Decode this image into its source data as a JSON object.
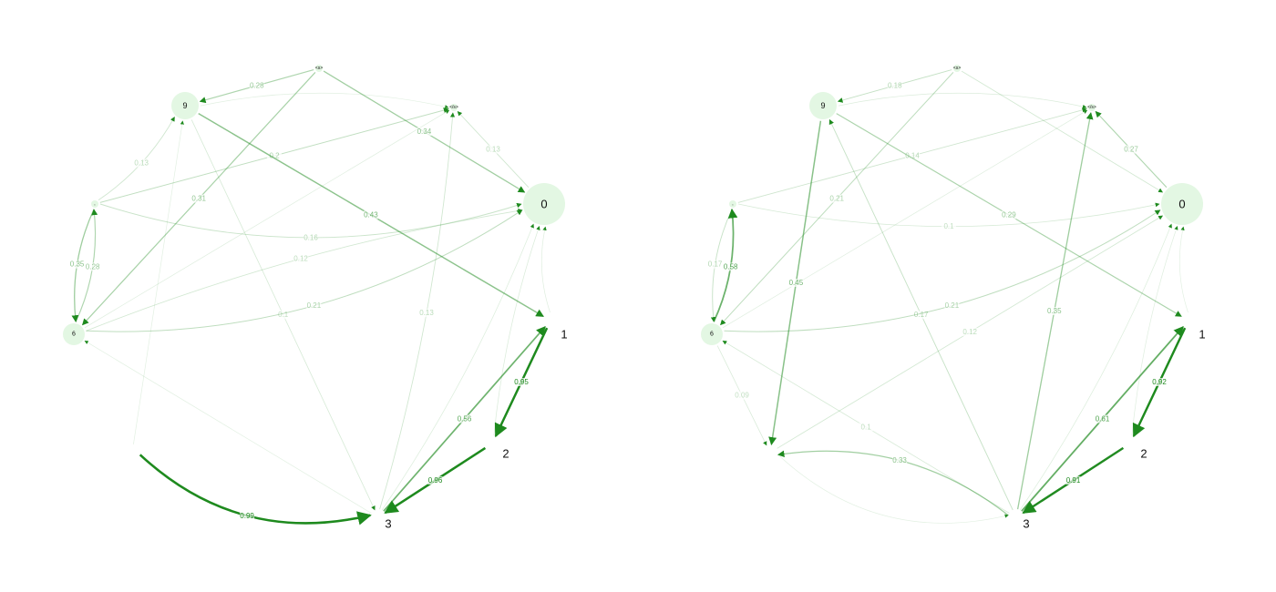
{
  "colors": {
    "edge": "#1e8a1e",
    "node_fill": "#e3f7e3",
    "label": "#111111"
  },
  "graphs": [
    {
      "id": "left",
      "nodes": [
        {
          "id": "s",
          "label": "<s>",
          "size": "tiny"
        },
        {
          "id": "9",
          "label": "9",
          "size": "medium"
        },
        {
          "id": "e",
          "label": "</s>",
          "size": "tiny"
        },
        {
          "id": "0",
          "label": "0",
          "size": "large"
        },
        {
          "id": "comma",
          "label": ",",
          "size": "tiny"
        },
        {
          "id": "6",
          "label": "6",
          "size": "small"
        },
        {
          "id": "1",
          "label": "1",
          "size": "none"
        },
        {
          "id": "2",
          "label": "2",
          "size": "none"
        },
        {
          "id": "3",
          "label": "3",
          "size": "none"
        },
        {
          "id": "x",
          "label": "",
          "size": "none"
        }
      ],
      "edges": [
        {
          "from": "x",
          "to": "3",
          "weight": 0.99,
          "label": "0.99",
          "curve": 0.25
        },
        {
          "from": "1",
          "to": "2",
          "weight": 0.95,
          "label": "0.95",
          "curve": 0
        },
        {
          "from": "2",
          "to": "3",
          "weight": 0.96,
          "label": "0.96",
          "curve": 0
        },
        {
          "from": "3",
          "to": "1",
          "weight": 0.56,
          "label": "0.56",
          "curve": 0
        },
        {
          "from": "9",
          "to": "1",
          "weight": 0.43,
          "label": "0.43",
          "curve": 0
        },
        {
          "from": "comma",
          "to": "6",
          "weight": 0.35,
          "label": "0.35",
          "curve": 0.12
        },
        {
          "from": "6",
          "to": "comma",
          "weight": 0.28,
          "label": "0.28",
          "curve": 0.12
        },
        {
          "from": "s",
          "to": "9",
          "weight": 0.28,
          "label": "0.28",
          "curve": 0
        },
        {
          "from": "s",
          "to": "0",
          "weight": 0.34,
          "label": "0.34",
          "curve": 0
        },
        {
          "from": "s",
          "to": "6",
          "weight": 0.31,
          "label": "0.31",
          "curve": 0
        },
        {
          "from": "6",
          "to": "0",
          "weight": 0.21,
          "label": "0.21",
          "curve": 0.15
        },
        {
          "from": "comma",
          "to": "9",
          "weight": 0.13,
          "label": "0.13",
          "curve": 0.1
        },
        {
          "from": "comma",
          "to": "e",
          "weight": 0.2,
          "label": "0.2",
          "curve": 0
        },
        {
          "from": "comma",
          "to": "0",
          "weight": 0.16,
          "label": "0.16",
          "curve": 0.15
        },
        {
          "from": "6",
          "to": "0",
          "weight": 0.12,
          "label": "0.12",
          "curve": -0.05
        },
        {
          "from": "0",
          "to": "e",
          "weight": 0.13,
          "label": "0.13",
          "curve": 0
        },
        {
          "from": "9",
          "to": "e",
          "weight": 0.05,
          "label": "",
          "curve": -0.1
        },
        {
          "from": "9",
          "to": "3",
          "weight": 0.1,
          "label": "0.1",
          "curve": 0
        },
        {
          "from": "3",
          "to": "e",
          "weight": 0.13,
          "label": "0.13",
          "curve": 0.05
        },
        {
          "from": "3",
          "to": "0",
          "weight": 0.07,
          "label": "",
          "curve": 0.05
        },
        {
          "from": "6",
          "to": "e",
          "weight": 0.06,
          "label": "",
          "curve": 0
        },
        {
          "from": "3",
          "to": "6",
          "weight": 0.05,
          "label": "",
          "curve": 0
        },
        {
          "from": "2",
          "to": "0",
          "weight": 0.08,
          "label": "",
          "curve": -0.05
        },
        {
          "from": "1",
          "to": "0",
          "weight": 0.06,
          "label": "",
          "curve": -0.1
        },
        {
          "from": "x",
          "to": "9",
          "weight": 0.05,
          "label": "",
          "curve": 0
        }
      ]
    },
    {
      "id": "right",
      "nodes": [
        {
          "id": "s",
          "label": "<s>",
          "size": "tiny"
        },
        {
          "id": "9",
          "label": "9",
          "size": "medium"
        },
        {
          "id": "e",
          "label": "</s>",
          "size": "tiny"
        },
        {
          "id": "0",
          "label": "0",
          "size": "large"
        },
        {
          "id": "comma",
          "label": ",",
          "size": "tiny"
        },
        {
          "id": "6",
          "label": "6",
          "size": "small"
        },
        {
          "id": "1",
          "label": "1",
          "size": "none"
        },
        {
          "id": "2",
          "label": "2",
          "size": "none"
        },
        {
          "id": "3",
          "label": "3",
          "size": "none"
        },
        {
          "id": "x",
          "label": "",
          "size": "none"
        }
      ],
      "edges": [
        {
          "from": "1",
          "to": "2",
          "weight": 0.92,
          "label": "0.92",
          "curve": 0
        },
        {
          "from": "2",
          "to": "3",
          "weight": 0.91,
          "label": "0.91",
          "curve": 0
        },
        {
          "from": "3",
          "to": "1",
          "weight": 0.61,
          "label": "0.61",
          "curve": 0
        },
        {
          "from": "6",
          "to": "comma",
          "weight": 0.58,
          "label": "0.58",
          "curve": 0.12
        },
        {
          "from": "comma",
          "to": "6",
          "weight": 0.17,
          "label": "0.17",
          "curve": 0.12
        },
        {
          "from": "9",
          "to": "x",
          "weight": 0.45,
          "label": "0.45",
          "curve": 0
        },
        {
          "from": "3",
          "to": "x",
          "weight": 0.33,
          "label": "0.33",
          "curve": 0.2
        },
        {
          "from": "3",
          "to": "e",
          "weight": 0.35,
          "label": "0.35",
          "curve": 0
        },
        {
          "from": "0",
          "to": "e",
          "weight": 0.27,
          "label": "0.27",
          "curve": 0
        },
        {
          "from": "9",
          "to": "1",
          "weight": 0.29,
          "label": "0.29",
          "curve": 0
        },
        {
          "from": "6",
          "to": "0",
          "weight": 0.21,
          "label": "0.21",
          "curve": 0.15
        },
        {
          "from": "s",
          "to": "9",
          "weight": 0.18,
          "label": "0.18",
          "curve": 0
        },
        {
          "from": "s",
          "to": "6",
          "weight": 0.21,
          "label": "0.21",
          "curve": 0
        },
        {
          "from": "3",
          "to": "9",
          "weight": 0.17,
          "label": "0.17",
          "curve": 0
        },
        {
          "from": "comma",
          "to": "e",
          "weight": 0.14,
          "label": "0.14",
          "curve": 0
        },
        {
          "from": "x",
          "to": "0",
          "weight": 0.12,
          "label": "0.12",
          "curve": 0
        },
        {
          "from": "comma",
          "to": "0",
          "weight": 0.1,
          "label": "0.1",
          "curve": 0.1
        },
        {
          "from": "6",
          "to": "x",
          "weight": 0.09,
          "label": "0.09",
          "curve": 0
        },
        {
          "from": "3",
          "to": "6",
          "weight": 0.1,
          "label": "0.1",
          "curve": 0
        },
        {
          "from": "s",
          "to": "0",
          "weight": 0.12,
          "label": "",
          "curve": 0
        },
        {
          "from": "9",
          "to": "e",
          "weight": 0.08,
          "label": "",
          "curve": -0.1
        },
        {
          "from": "3",
          "to": "0",
          "weight": 0.07,
          "label": "",
          "curve": 0.05
        },
        {
          "from": "x",
          "to": "3",
          "weight": 0.05,
          "label": "",
          "curve": 0.25
        },
        {
          "from": "6",
          "to": "e",
          "weight": 0.06,
          "label": "",
          "curve": 0
        },
        {
          "from": "2",
          "to": "0",
          "weight": 0.06,
          "label": "",
          "curve": -0.05
        },
        {
          "from": "1",
          "to": "0",
          "weight": 0.05,
          "label": "",
          "curve": -0.1
        }
      ]
    }
  ]
}
